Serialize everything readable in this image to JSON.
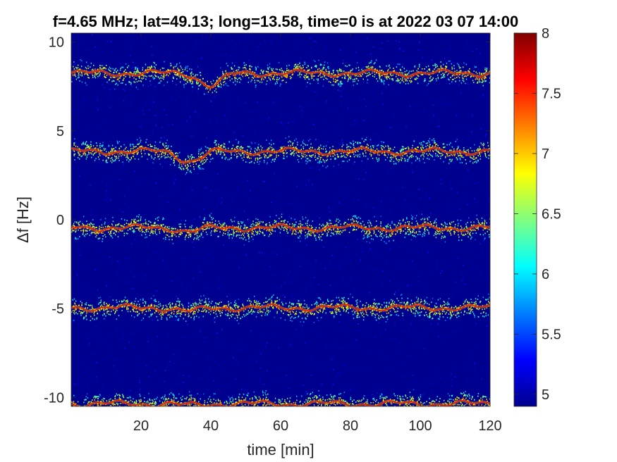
{
  "chart_data": {
    "type": "heatmap",
    "title": "f=4.65 MHz;  lat=49.13; long=13.58, time=0 is at 2022 03 07 14:00",
    "xlabel": "time [min]",
    "ylabel": "Δf [Hz]",
    "xlim": [
      0,
      120
    ],
    "ylim": [
      -10.5,
      10.5
    ],
    "x_ticks": [
      20,
      40,
      60,
      80,
      100,
      120
    ],
    "y_ticks": [
      10,
      5,
      0,
      -5,
      -10
    ],
    "x_tick_labels": [
      "20",
      "40",
      "60",
      "80",
      "100",
      "120"
    ],
    "y_tick_labels": [
      "10",
      "5",
      "0",
      "-5",
      "-10"
    ],
    "colorbar": {
      "range": [
        4.9,
        8.0
      ],
      "ticks": [
        8,
        7.5,
        7,
        6.5,
        6,
        5.5,
        5
      ],
      "tick_labels": [
        "8",
        "7.5",
        "7",
        "6.5",
        "6",
        "5.5",
        "5"
      ],
      "colormap": "jet"
    },
    "background_color": "#00008f",
    "bands": [
      {
        "name": "",
        "center": 8.25,
        "dip_at": 40,
        "dip_depth": 0.7
      },
      {
        "name": "",
        "center": 3.85,
        "dip_at": 34,
        "dip_depth": 0.55
      },
      {
        "name": "",
        "center": -0.45,
        "dip_at": 34,
        "dip_depth": 0.2
      },
      {
        "name": "",
        "center": -4.95,
        "dip_at": 34,
        "dip_depth": 0.2
      },
      {
        "name": "",
        "center": -10.35,
        "dip_at": 34,
        "dip_depth": 0.1
      }
    ],
    "grid": false
  }
}
